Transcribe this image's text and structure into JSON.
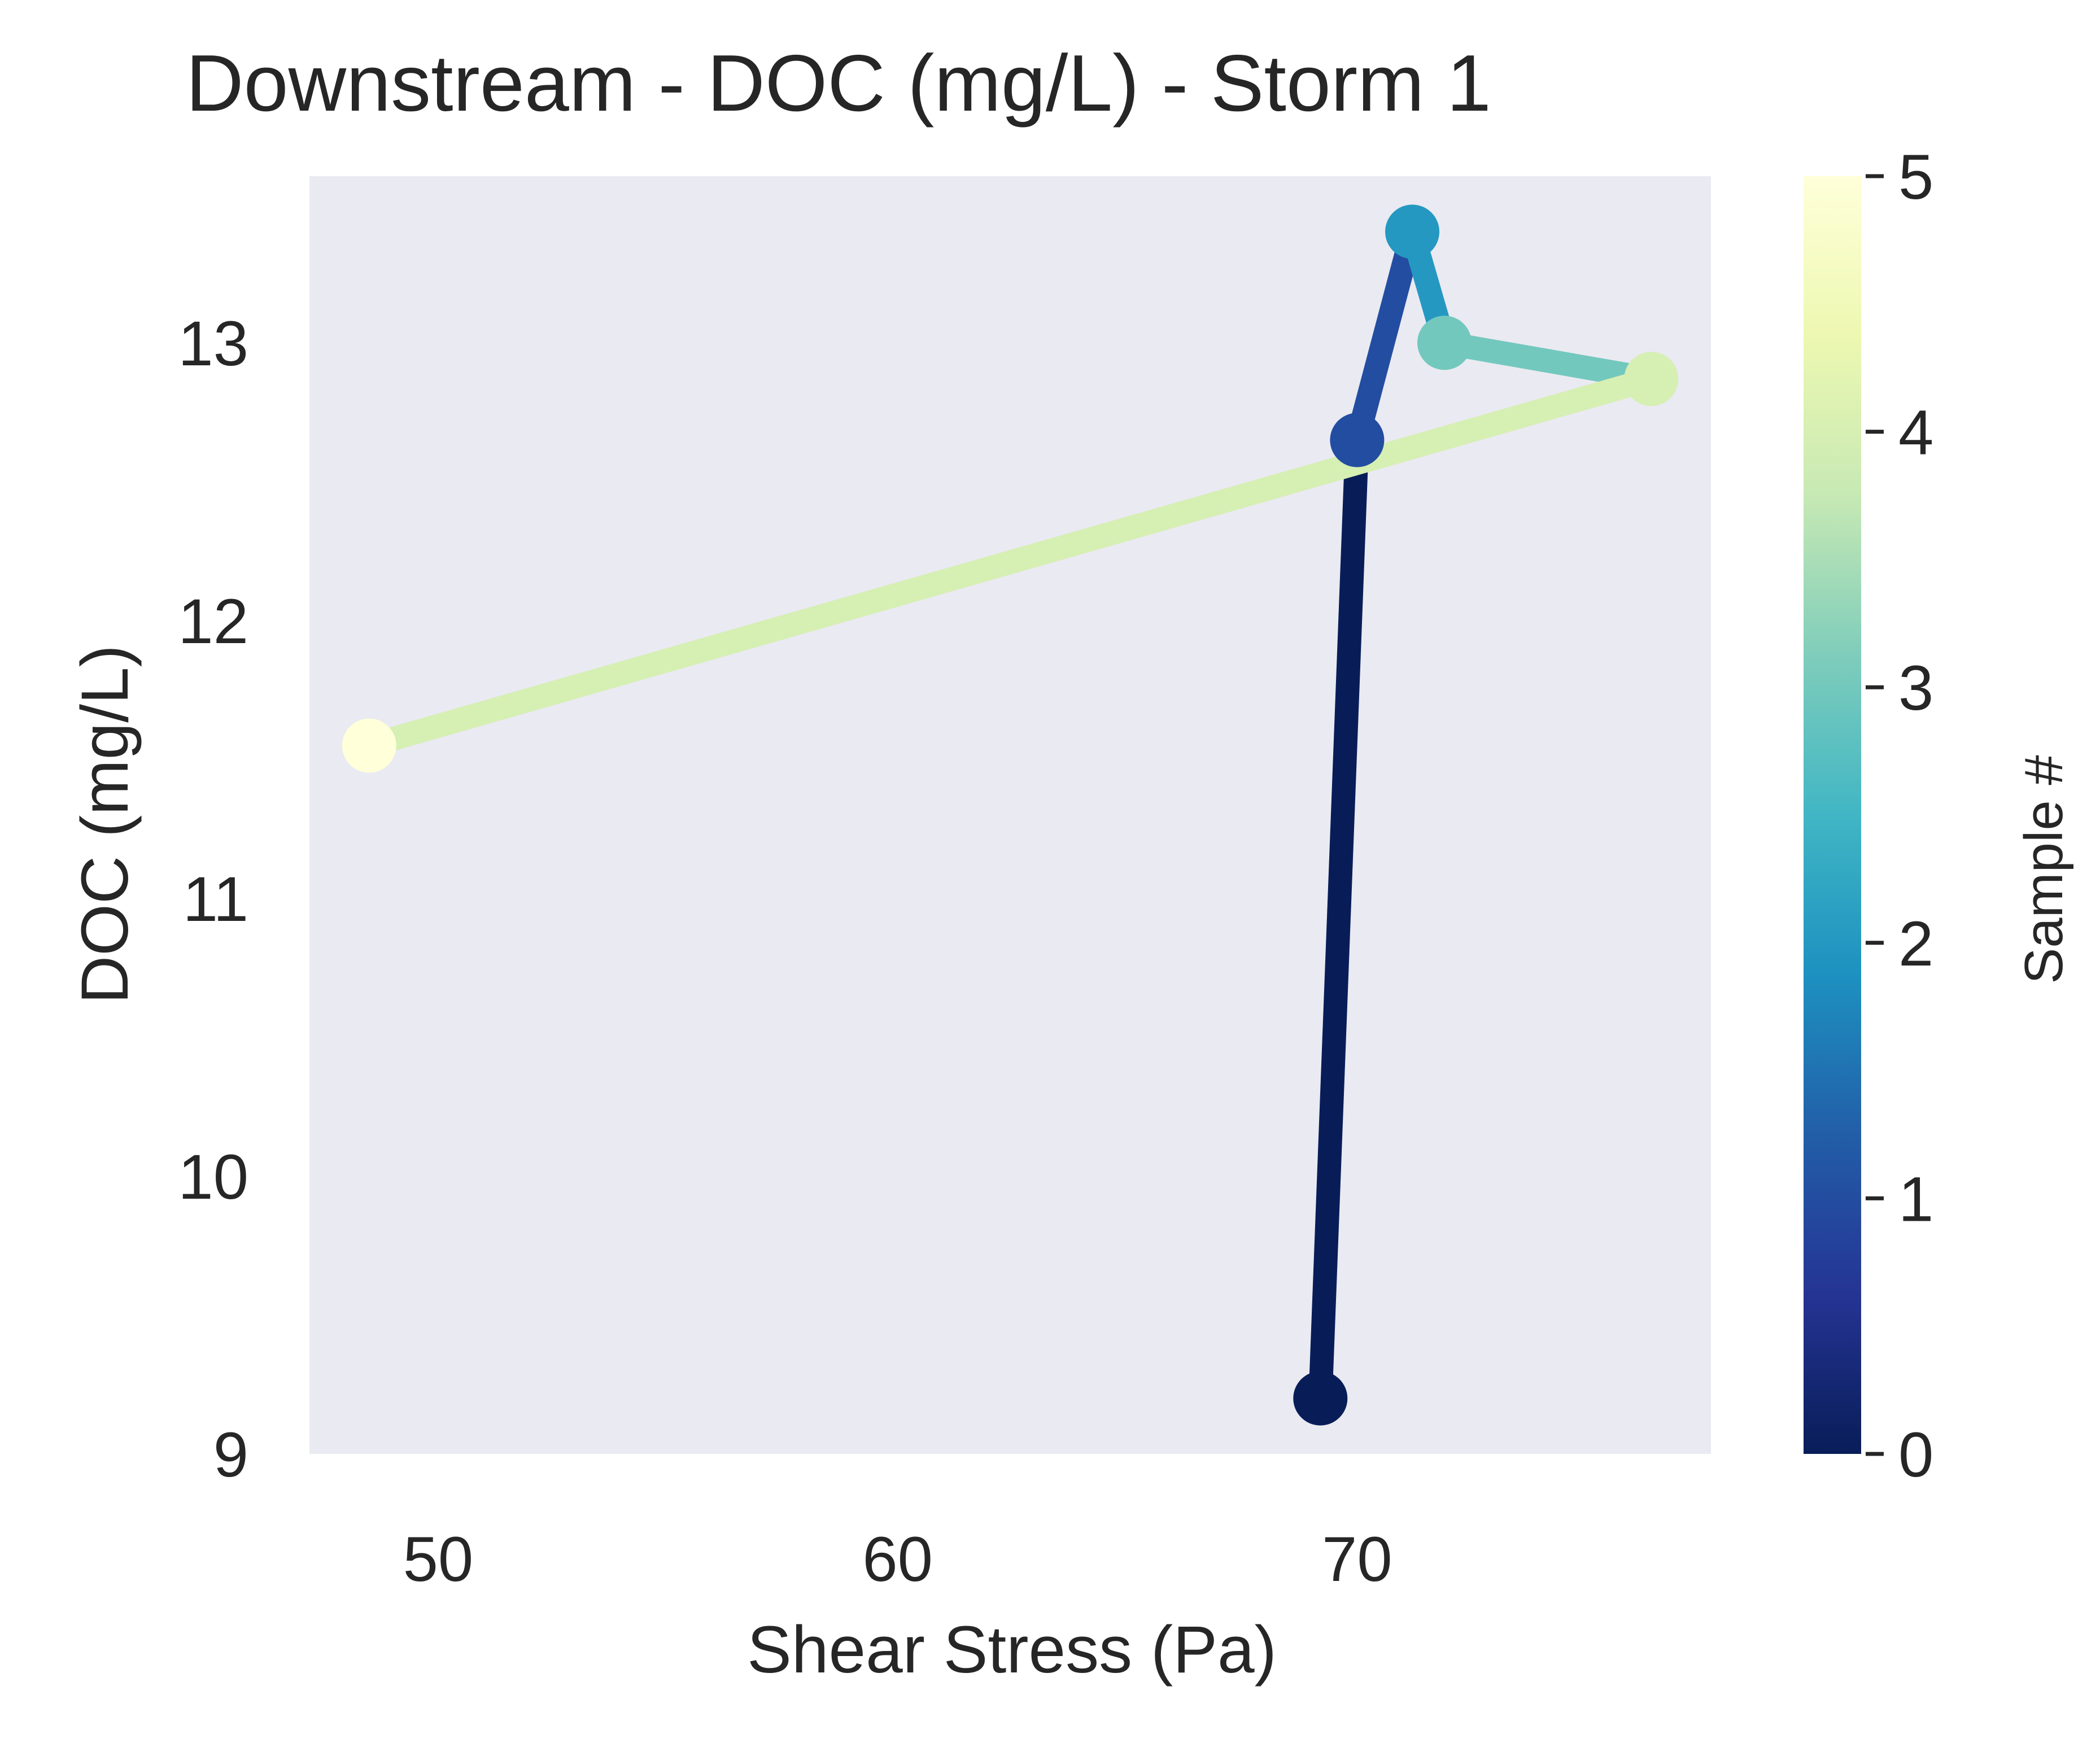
{
  "chart_data": {
    "type": "line",
    "title": "Downstream - DOC (mg/L) - Storm 1",
    "xlabel": "Shear Stress (Pa)",
    "ylabel": "DOC (mg/L)",
    "xlim": [
      47.2,
      77.7
    ],
    "ylim": [
      9.0,
      13.6
    ],
    "xticks": [
      50,
      60,
      70
    ],
    "yticks": [
      9,
      10,
      11,
      12,
      13
    ],
    "grid": false,
    "background": "#eaeaf2",
    "series": [
      {
        "x": [
          69.2,
          70.0,
          71.2,
          71.9,
          76.4,
          48.5
        ],
        "y": [
          9.2,
          12.65,
          13.4,
          13.0,
          12.87,
          11.55
        ],
        "sample": [
          0,
          1,
          2,
          3,
          4,
          5
        ]
      }
    ],
    "colorbar": {
      "label": "Sample #",
      "range": [
        0,
        5
      ],
      "ticks": [
        0,
        1,
        2,
        3,
        4,
        5
      ],
      "colormap": "YlGnBu_r",
      "stops": [
        "#081d58",
        "#253494",
        "#225ea8",
        "#1d91c0",
        "#41b6c4",
        "#7fcdbb",
        "#c7e9b4",
        "#edf8b1",
        "#ffffd9"
      ]
    }
  }
}
